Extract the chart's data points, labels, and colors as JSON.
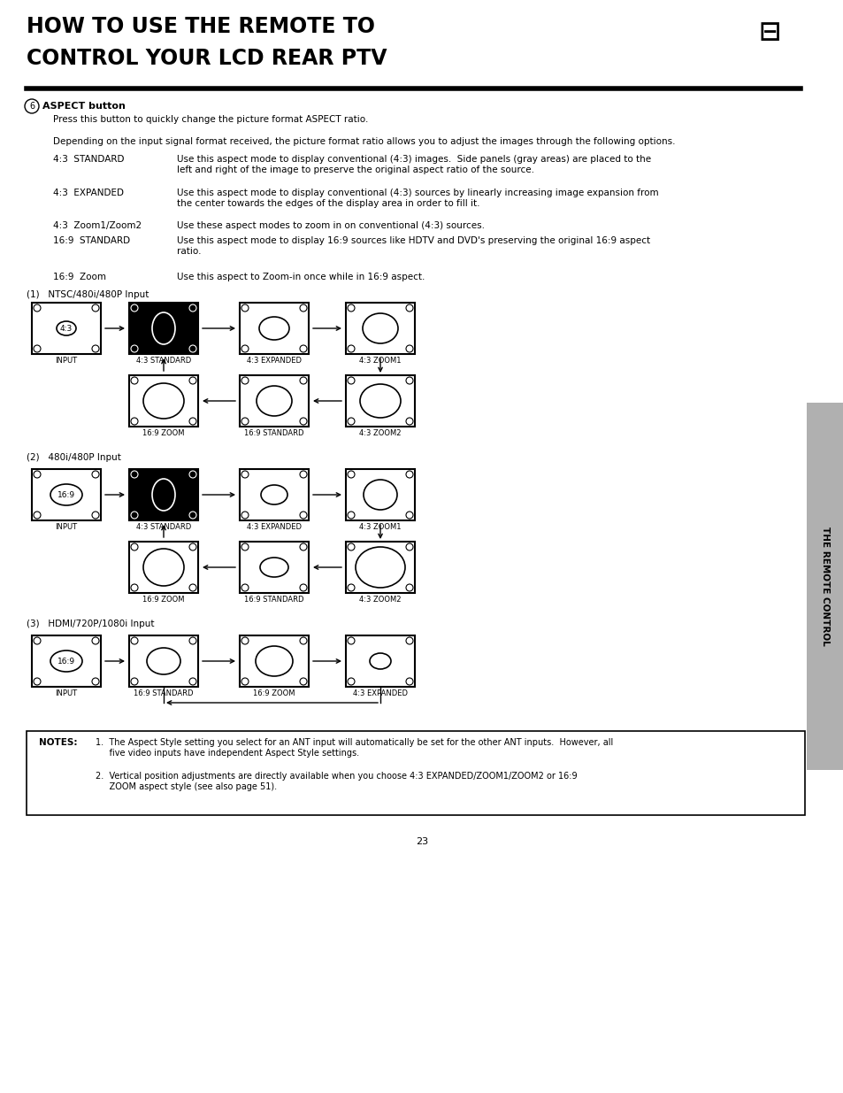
{
  "title_line1": "HOW TO USE THE REMOTE TO",
  "title_line2": "CONTROL YOUR LCD REAR PTV",
  "title_fontsize": 17,
  "body_fontsize": 8.0,
  "label_fontsize": 6.5,
  "bg_color": "#ffffff",
  "text_color": "#000000",
  "aspect_title": "ASPECT button",
  "aspect_desc": "Press this button to quickly change the picture format ASPECT ratio.",
  "depend_text": "Depending on the input signal format received, the picture format ratio allows you to adjust the images through the following options.",
  "modes": [
    {
      "label": "4:3  STANDARD",
      "desc": "Use this aspect mode to display conventional (4:3) images.  Side panels (gray areas) are placed to the left and right of the image to preserve the original aspect ratio of the source."
    },
    {
      "label": "4:3  EXPANDED",
      "desc": "Use this aspect mode to display conventional (4:3) sources by linearly increasing image expansion from the center towards the edges of the display area in order to fill it."
    },
    {
      "label": "4:3  Zoom1/Zoom2",
      "desc": "Use these aspect modes to zoom in on conventional (4:3) sources."
    },
    {
      "label": "16:9  STANDARD",
      "desc": "Use this aspect mode to display 16:9 sources like HDTV and DVD's preserving the original 16:9 aspect ratio."
    },
    {
      "label": "16:9  Zoom",
      "desc": "Use this aspect to Zoom-in once while in 16:9 aspect."
    }
  ],
  "note1": "1.  The Aspect Style setting you select for an ANT input will automatically be set for the other ANT inputs.  However, all\n     five video inputs have independent Aspect Style settings.",
  "note2": "2.  Vertical position adjustments are directly available when you choose 4:3 EXPANDED/ZOOM1/ZOOM2 or 16:9\n     ZOOM aspect style (see also page 51).",
  "page_number": "23",
  "sidebar_text": "THE REMOTE CONTROL"
}
